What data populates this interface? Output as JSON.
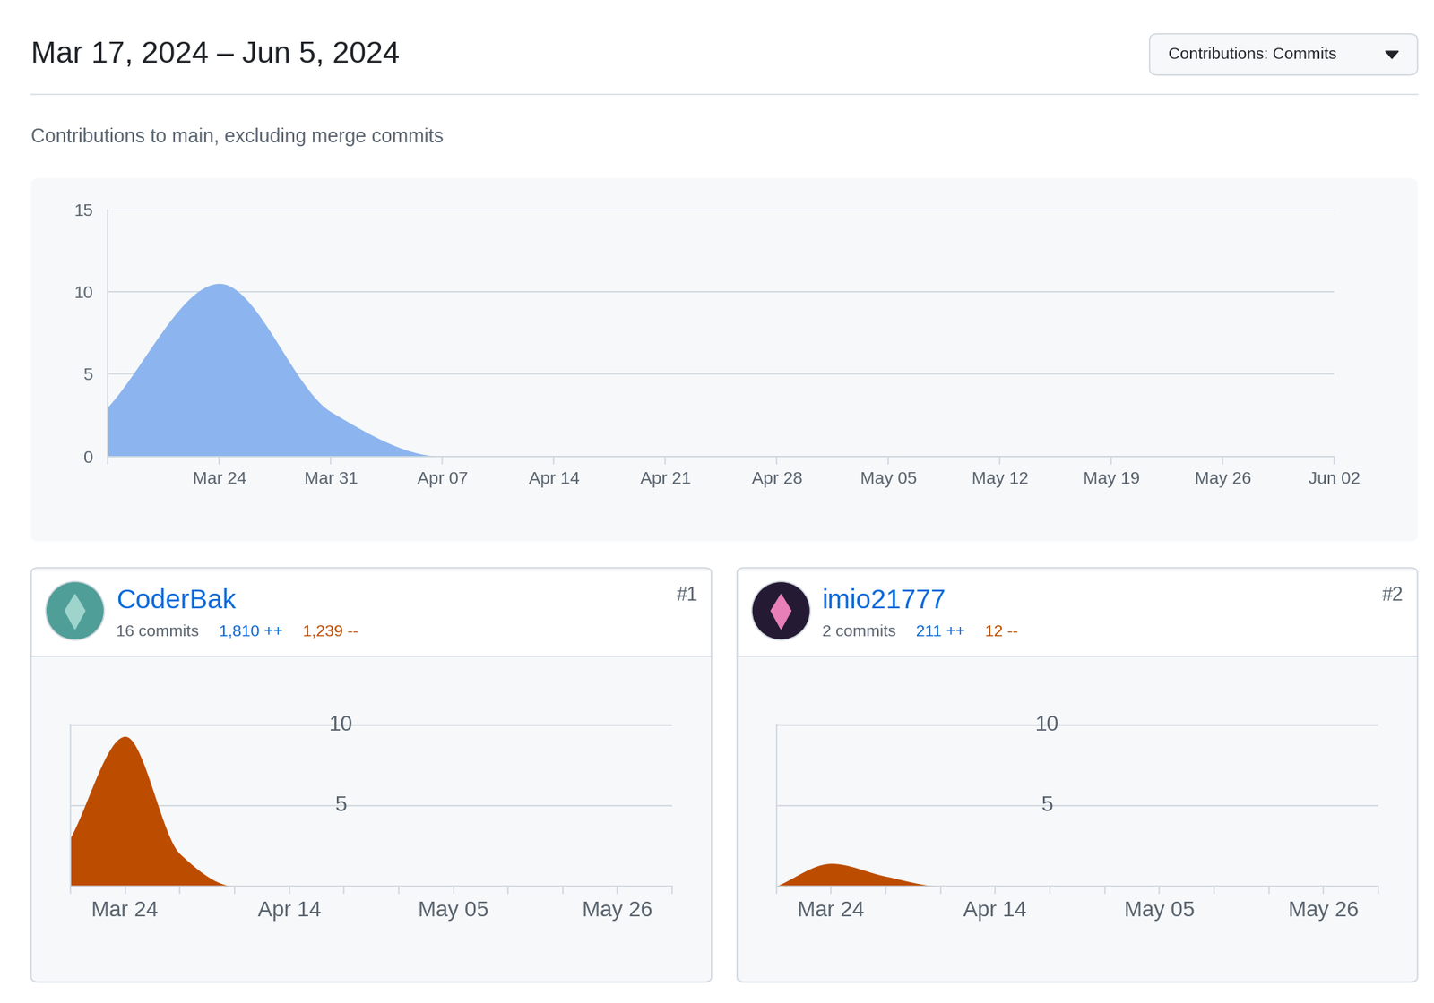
{
  "header": {
    "title": "Mar 17, 2024 – Jun 5, 2024",
    "button": "Contributions: Commits",
    "subtitle": "Contributions to main, excluding merge commits"
  },
  "chart_data": [
    {
      "type": "area",
      "categories": [
        null,
        "Mar 24",
        "Mar 31",
        "Apr 07",
        "Apr 14",
        "Apr 21",
        "Apr 28",
        "May 05",
        "May 12",
        "May 19",
        "May 26",
        "Jun 02"
      ],
      "values": [
        3,
        10.5,
        2.7,
        0,
        0,
        0,
        0,
        0,
        0,
        0,
        0,
        0
      ],
      "color": "#8cb4ee",
      "ylim": [
        0,
        15
      ],
      "yticks": [
        0,
        5,
        10,
        15
      ],
      "grid": true
    },
    {
      "type": "area",
      "title": "CoderBak",
      "annotations": [
        "#1",
        "16 commits",
        "1,810 ++",
        "1,239 --"
      ],
      "categories": [
        null,
        "Mar 24",
        null,
        null,
        "Apr 14",
        null,
        null,
        "May 05",
        null,
        null,
        "May 26",
        null
      ],
      "values": [
        3,
        9.3,
        2,
        0,
        0,
        0,
        0,
        0,
        0,
        0,
        0,
        0
      ],
      "color": "#bc4c00",
      "ylim": [
        0,
        10
      ],
      "yticks": [
        5,
        10
      ],
      "grid": true
    },
    {
      "type": "area",
      "title": "imio21777",
      "annotations": [
        "#2",
        "2 commits",
        "211 ++",
        "12 --"
      ],
      "categories": [
        null,
        "Mar 24",
        null,
        null,
        "Apr 14",
        null,
        null,
        "May 05",
        null,
        null,
        "May 26",
        null
      ],
      "values": [
        0,
        1.4,
        0.6,
        0,
        0,
        0,
        0,
        0,
        0,
        0,
        0,
        0
      ],
      "color": "#bc4c00",
      "ylim": [
        0,
        10
      ],
      "yticks": [
        5,
        10
      ],
      "grid": true
    }
  ]
}
